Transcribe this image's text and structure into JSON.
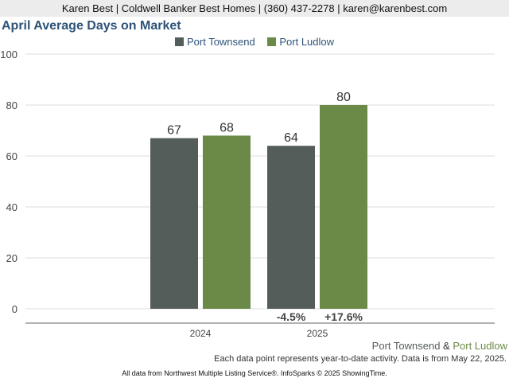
{
  "header": {
    "agent": "Karen Best | Coldwell Banker Best Homes | (360) 437-2278 | karen@karenbest.com"
  },
  "colors": {
    "port_townsend": "#555d5b",
    "port_ludlow": "#6b8a47",
    "title": "#2e5378"
  },
  "chart_data": {
    "type": "bar",
    "title": "April Average Days on Market",
    "categories": [
      "2024",
      "2025"
    ],
    "series": [
      {
        "name": "Port Townsend",
        "values": [
          67,
          64
        ]
      },
      {
        "name": "Port Ludlow",
        "values": [
          68,
          80
        ]
      }
    ],
    "ylim": [
      0,
      100
    ],
    "yticks": [
      0,
      20,
      40,
      60,
      80,
      100
    ],
    "grid": true,
    "legend_position": "top-center",
    "change_labels": [
      {
        "category": "2025",
        "series": "Port Townsend",
        "text": "-4.5%"
      },
      {
        "category": "2025",
        "series": "Port Ludlow",
        "text": "+17.6%"
      }
    ]
  },
  "footer": {
    "area_a": "Port Townsend",
    "conjunction": " & ",
    "area_b": "Port Ludlow",
    "note": "Each data point represents year-to-date activity. Data is from May 22, 2025.",
    "source": "All data from Northwest Multiple Listing Service®. InfoSparks © 2025 ShowingTime."
  }
}
